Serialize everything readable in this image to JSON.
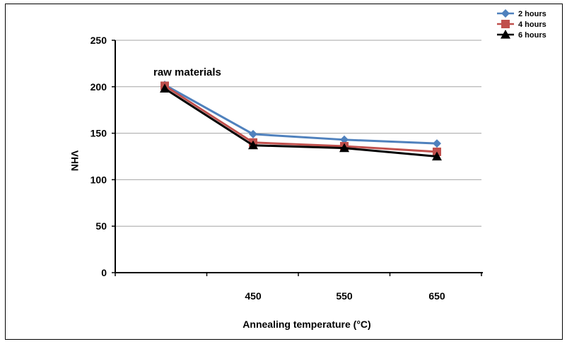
{
  "chart_data": {
    "type": "line",
    "x_positions": [
      "",
      "450",
      "550",
      "650"
    ],
    "categories": [
      "",
      "450",
      "550",
      "650"
    ],
    "series": [
      {
        "name": "2 hours",
        "values": [
          202,
          149,
          143,
          139
        ],
        "color": "#4f81bd",
        "marker": "diamond"
      },
      {
        "name": "4 hours",
        "values": [
          201,
          140,
          136,
          130
        ],
        "color": "#c0504d",
        "marker": "square"
      },
      {
        "name": "6 hours",
        "values": [
          198,
          137,
          134,
          125
        ],
        "color": "#000000",
        "marker": "triangle"
      }
    ],
    "xlabel": "Annealing temperature (°C)",
    "ylabel": "VHN",
    "ylim": [
      0,
      250
    ],
    "yticks": [
      "0",
      "50",
      "100",
      "150",
      "200",
      "250"
    ],
    "grid": true,
    "legend_position": "top-right",
    "annotation": "raw materials"
  }
}
